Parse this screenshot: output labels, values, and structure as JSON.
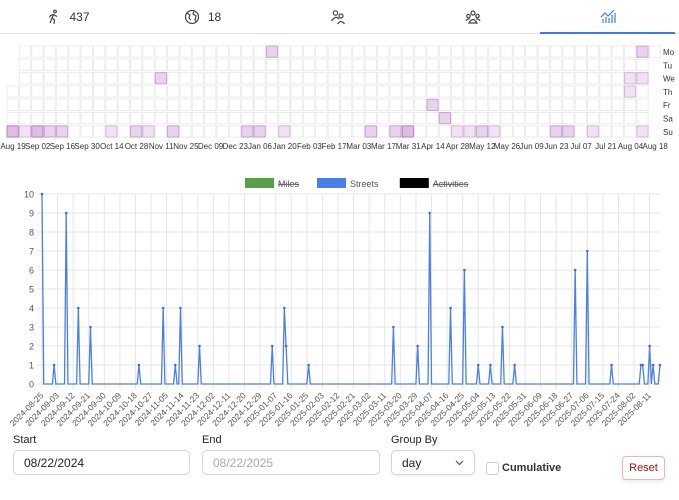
{
  "tabs": [
    {
      "icon": "runner-icon",
      "label": "437"
    },
    {
      "icon": "globe-icon",
      "label": "18"
    },
    {
      "icon": "users-icon",
      "label": ""
    },
    {
      "icon": "group-icon",
      "label": ""
    },
    {
      "icon": "chart-icon",
      "label": "",
      "active": true
    }
  ],
  "heatmap": {
    "month_labels": [
      "Aug 19",
      "Sep 02",
      "Sep 16",
      "Sep 30",
      "Oct 14",
      "Oct 28",
      "Nov 11",
      "Nov 25",
      "Dec 09",
      "Dec 23",
      "Jan 06",
      "Jan 20",
      "Feb 03",
      "Feb 17",
      "Mar 03",
      "Mar 17",
      "Mar 31",
      "Apr 14",
      "Apr 28",
      "May 12",
      "May 26",
      "Jun 09",
      "Jun 23",
      "Jul 07",
      "Jul 21",
      "Aug 04",
      "Aug 18"
    ],
    "day_labels": [
      "Mo",
      "Tu",
      "We",
      "Th",
      "Fr",
      "Sa",
      "Su"
    ],
    "color": "#b36cbf"
  },
  "chart_data": {
    "type": "line",
    "legend": [
      {
        "name": "Miles",
        "color": "#5a9e4b",
        "hidden": true
      },
      {
        "name": "Streets",
        "color": "#4a7fe8",
        "hidden": false
      },
      {
        "name": "Activities",
        "color": "#000000",
        "hidden": true
      }
    ],
    "legend_position": "top",
    "x_start": "2024-08-25",
    "x_end": "2025-08-17",
    "x_ticks": [
      "2024-08-25",
      "2024-09-03",
      "2024-09-12",
      "2024-09-21",
      "2024-09-30",
      "2024-10-09",
      "2024-10-18",
      "2024-10-27",
      "2024-11-05",
      "2024-11-14",
      "2024-11-23",
      "2024-12-02",
      "2024-12-11",
      "2024-12-20",
      "2024-12-29",
      "2025-01-07",
      "2025-01-16",
      "2025-01-25",
      "2025-02-03",
      "2025-02-12",
      "2025-02-21",
      "2025-03-02",
      "2025-03-11",
      "2025-03-20",
      "2025-03-29",
      "2025-04-07",
      "2025-04-16",
      "2025-04-25",
      "2025-05-04",
      "2025-05-13",
      "2025-05-22",
      "2025-05-31",
      "2025-06-09",
      "2025-06-18",
      "2025-06-27",
      "2025-07-06",
      "2025-07-15",
      "2025-07-24",
      "2025-08-02",
      "2025-08-11"
    ],
    "y_ticks": [
      "0",
      "1",
      "2",
      "3",
      "4",
      "5",
      "6",
      "7",
      "8",
      "9",
      "10"
    ],
    "ylim": [
      0,
      10
    ],
    "grid": true,
    "series": [
      {
        "name": "Streets",
        "default_value": 0,
        "points": [
          {
            "date": "2024-08-25",
            "value": 10
          },
          {
            "date": "2024-09-01",
            "value": 1
          },
          {
            "date": "2024-09-08",
            "value": 9
          },
          {
            "date": "2024-09-15",
            "value": 4
          },
          {
            "date": "2024-09-22",
            "value": 3
          },
          {
            "date": "2024-10-20",
            "value": 1
          },
          {
            "date": "2024-11-03",
            "value": 4
          },
          {
            "date": "2024-11-10",
            "value": 1
          },
          {
            "date": "2024-11-13",
            "value": 4
          },
          {
            "date": "2024-11-24",
            "value": 2
          },
          {
            "date": "2025-01-05",
            "value": 2
          },
          {
            "date": "2025-01-12",
            "value": 4
          },
          {
            "date": "2025-01-13",
            "value": 2
          },
          {
            "date": "2025-01-26",
            "value": 1
          },
          {
            "date": "2025-03-16",
            "value": 3
          },
          {
            "date": "2025-03-30",
            "value": 2
          },
          {
            "date": "2025-04-06",
            "value": 9
          },
          {
            "date": "2025-04-18",
            "value": 4
          },
          {
            "date": "2025-04-26",
            "value": 6
          },
          {
            "date": "2025-05-04",
            "value": 1
          },
          {
            "date": "2025-05-11",
            "value": 1
          },
          {
            "date": "2025-05-18",
            "value": 3
          },
          {
            "date": "2025-05-25",
            "value": 1
          },
          {
            "date": "2025-06-29",
            "value": 6
          },
          {
            "date": "2025-07-06",
            "value": 7
          },
          {
            "date": "2025-07-20",
            "value": 1
          },
          {
            "date": "2025-08-06",
            "value": 1
          },
          {
            "date": "2025-08-07",
            "value": 1
          },
          {
            "date": "2025-08-11",
            "value": 2
          },
          {
            "date": "2025-08-13",
            "value": 1
          },
          {
            "date": "2025-08-17",
            "value": 1
          }
        ]
      }
    ]
  },
  "controls": {
    "start_label": "Start",
    "start_value": "08/22/2024",
    "end_label": "End",
    "end_value": "08/22/2025",
    "group_label": "Group By",
    "group_value": "day",
    "cumulative_label": "Cumulative",
    "cumulative_checked": false,
    "reset_label": "Reset"
  }
}
